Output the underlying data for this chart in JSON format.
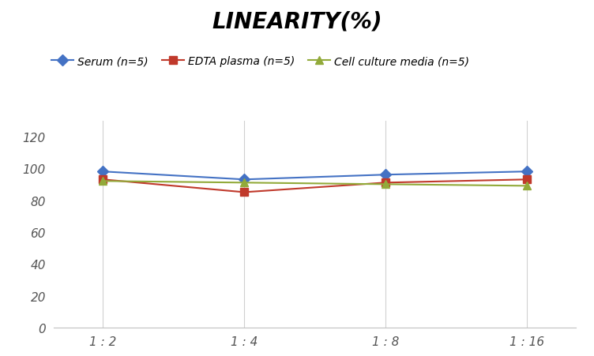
{
  "title": "LINEARITY(%)",
  "x_labels": [
    "1 : 2",
    "1 : 4",
    "1 : 8",
    "1 : 16"
  ],
  "x_positions": [
    0,
    1,
    2,
    3
  ],
  "series": [
    {
      "label": "Serum (n=5)",
      "values": [
        98,
        93,
        96,
        98
      ],
      "color": "#4472C4",
      "marker": "D",
      "linewidth": 1.5
    },
    {
      "label": "EDTA plasma (n=5)",
      "values": [
        93,
        85,
        91,
        93
      ],
      "color": "#C0392B",
      "marker": "s",
      "linewidth": 1.5
    },
    {
      "label": "Cell culture media (n=5)",
      "values": [
        92,
        91,
        90,
        89
      ],
      "color": "#92AA3A",
      "marker": "^",
      "linewidth": 1.5
    }
  ],
  "ylim": [
    0,
    130
  ],
  "yticks": [
    0,
    20,
    40,
    60,
    80,
    100,
    120
  ],
  "background_color": "#ffffff",
  "grid_color": "#d0d0d0",
  "title_fontsize": 20,
  "legend_fontsize": 10,
  "tick_fontsize": 11
}
